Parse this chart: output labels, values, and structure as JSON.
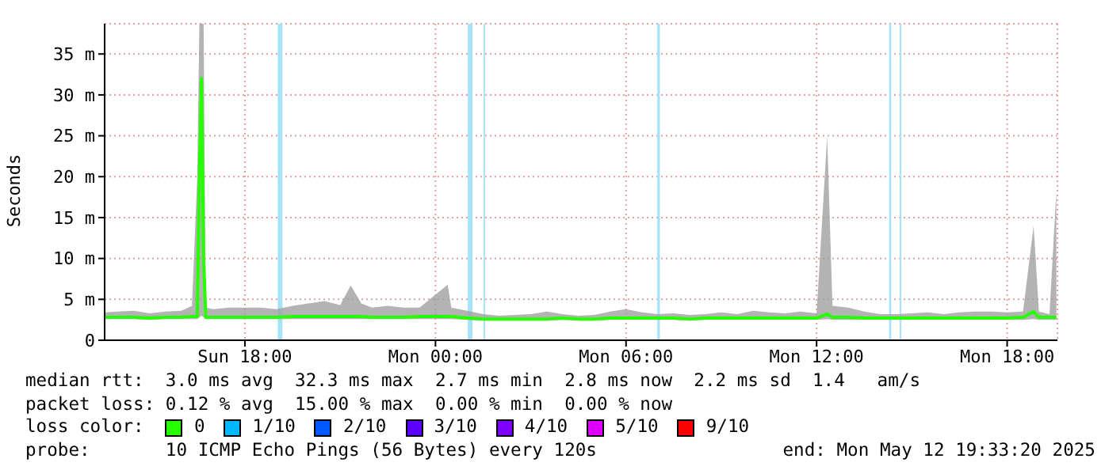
{
  "chart_data": {
    "type": "line",
    "ylabel": "Seconds",
    "legend_title": "loss color:",
    "legend": "bottom",
    "grid": true,
    "xlim": [
      "2025-05-11T13:35",
      "2025-05-12T19:35"
    ],
    "xticks": [
      {
        "value": "2025-05-11T18:00",
        "label": "Sun 18:00"
      },
      {
        "value": "2025-05-12T00:00",
        "label": "Mon 00:00"
      },
      {
        "value": "2025-05-12T06:00",
        "label": "Mon 06:00"
      },
      {
        "value": "2025-05-12T12:00",
        "label": "Mon 12:00"
      },
      {
        "value": "2025-05-12T18:00",
        "label": "Mon 18:00"
      }
    ],
    "ylim": [
      0,
      38.7
    ],
    "yticks": [
      0,
      {
        "value": 5,
        "label": "5 m"
      },
      {
        "value": 10,
        "label": "10 m"
      },
      {
        "value": 15,
        "label": "15 m"
      },
      {
        "value": 20,
        "label": "20 m"
      },
      {
        "value": 25,
        "label": "25 m"
      },
      {
        "value": 30,
        "label": "30 m"
      },
      {
        "value": 35,
        "label": "35 m"
      }
    ],
    "series": [
      {
        "name": "0",
        "color": "#26ff00",
        "x": [
          "2025-05-11T13:36",
          "2025-05-11T14:00",
          "2025-05-11T14:30",
          "2025-05-11T15:00",
          "2025-05-11T15:30",
          "2025-05-11T16:00",
          "2025-05-11T16:20",
          "2025-05-11T16:30",
          "2025-05-11T16:34",
          "2025-05-11T16:38",
          "2025-05-11T16:42",
          "2025-05-11T16:46",
          "2025-05-11T17:00",
          "2025-05-11T17:30",
          "2025-05-11T18:00",
          "2025-05-11T18:30",
          "2025-05-11T19:00",
          "2025-05-11T19:30",
          "2025-05-11T20:00",
          "2025-05-11T20:30",
          "2025-05-11T21:00",
          "2025-05-11T21:20",
          "2025-05-11T21:40",
          "2025-05-11T22:00",
          "2025-05-11T22:30",
          "2025-05-11T23:00",
          "2025-05-11T23:30",
          "2025-05-12T00:23",
          "2025-05-12T00:30",
          "2025-05-12T01:00",
          "2025-05-12T01:30",
          "2025-05-12T02:00",
          "2025-05-12T02:30",
          "2025-05-12T03:00",
          "2025-05-12T03:30",
          "2025-05-12T04:00",
          "2025-05-12T04:30",
          "2025-05-12T05:00",
          "2025-05-12T05:30",
          "2025-05-12T06:00",
          "2025-05-12T06:30",
          "2025-05-12T07:00",
          "2025-05-12T07:30",
          "2025-05-12T08:00",
          "2025-05-12T08:30",
          "2025-05-12T09:00",
          "2025-05-12T09:30",
          "2025-05-12T10:00",
          "2025-05-12T10:30",
          "2025-05-12T11:00",
          "2025-05-12T11:30",
          "2025-05-12T12:00",
          "2025-05-12T12:20",
          "2025-05-12T12:30",
          "2025-05-12T13:00",
          "2025-05-12T13:30",
          "2025-05-12T14:00",
          "2025-05-12T14:30",
          "2025-05-12T15:00",
          "2025-05-12T15:30",
          "2025-05-12T16:00",
          "2025-05-12T16:30",
          "2025-05-12T17:00",
          "2025-05-12T17:30",
          "2025-05-12T18:00",
          "2025-05-12T18:30",
          "2025-05-12T18:50",
          "2025-05-12T19:00",
          "2025-05-12T19:20",
          "2025-05-12T19:33"
        ],
        "values": [
          2.8,
          2.8,
          2.8,
          2.7,
          2.8,
          2.8,
          2.9,
          2.9,
          20,
          32,
          10,
          2.8,
          2.8,
          2.8,
          2.8,
          2.8,
          2.8,
          2.9,
          2.9,
          2.9,
          2.9,
          2.9,
          2.9,
          2.8,
          2.8,
          2.8,
          2.9,
          2.9,
          2.9,
          2.7,
          2.6,
          2.6,
          2.6,
          2.6,
          2.6,
          2.7,
          2.6,
          2.6,
          2.7,
          2.7,
          2.7,
          2.7,
          2.7,
          2.6,
          2.7,
          2.7,
          2.7,
          2.7,
          2.7,
          2.7,
          2.7,
          2.7,
          3.2,
          2.8,
          2.8,
          2.7,
          2.7,
          2.7,
          2.7,
          2.7,
          2.7,
          2.7,
          2.7,
          2.7,
          2.7,
          2.8,
          3.5,
          2.8,
          2.8,
          2.8
        ],
        "lower": [
          2.6,
          2.6,
          2.6,
          2.5,
          2.6,
          2.6,
          2.6,
          2.6,
          2.8,
          3,
          2.8,
          2.6,
          2.6,
          2.6,
          2.6,
          2.6,
          2.6,
          2.6,
          2.6,
          2.6,
          2.6,
          2.6,
          2.6,
          2.6,
          2.6,
          2.6,
          2.6,
          2.6,
          2.6,
          2.5,
          2.4,
          2.4,
          2.4,
          2.4,
          2.4,
          2.5,
          2.4,
          2.4,
          2.5,
          2.5,
          2.5,
          2.5,
          2.5,
          2.4,
          2.5,
          2.5,
          2.5,
          2.5,
          2.5,
          2.5,
          2.5,
          2.5,
          2.6,
          2.5,
          2.5,
          2.5,
          2.5,
          2.5,
          2.5,
          2.5,
          2.5,
          2.5,
          2.5,
          2.5,
          2.5,
          2.5,
          2.6,
          2.5,
          2.5,
          2.5
        ],
        "upper": [
          3.4,
          3.5,
          3.6,
          3.3,
          3.5,
          3.6,
          4.2,
          20,
          38.7,
          38.7,
          38.7,
          4,
          3.8,
          4,
          4,
          4,
          3.8,
          4.2,
          4.5,
          4.8,
          4.3,
          6.7,
          4.5,
          4,
          4.2,
          4,
          4,
          6.8,
          4,
          3.6,
          3.2,
          3,
          3.1,
          3.2,
          3.5,
          3.2,
          3,
          3.1,
          3.5,
          3.8,
          3.4,
          3.2,
          3.3,
          3.1,
          3.2,
          3.4,
          3.2,
          3.6,
          3.4,
          3.3,
          3.5,
          3.3,
          25,
          4.2,
          4,
          3.5,
          3.2,
          3.2,
          3.3,
          3.4,
          3.2,
          3.4,
          3.5,
          3.5,
          3.4,
          3.5,
          14,
          3.5,
          3.2,
          18.3
        ]
      },
      {
        "name": "1/10",
        "color": "#00b8ff"
      },
      {
        "name": "2/10",
        "color": "#0059ff"
      },
      {
        "name": "3/10",
        "color": "#5e00ff"
      },
      {
        "name": "4/10",
        "color": "#7e00ff"
      },
      {
        "name": "5/10",
        "color": "#dd00ff"
      },
      {
        "name": "9/10",
        "color": "#ff0000"
      }
    ],
    "bands": [
      {
        "axis": "x",
        "from": "2025-05-11T19:02",
        "to": "2025-05-11T19:11",
        "color": "#a6e3fa"
      },
      {
        "axis": "x",
        "from": "2025-05-12T01:01",
        "to": "2025-05-12T01:10",
        "color": "#a6e3fa"
      },
      {
        "axis": "x",
        "from": "2025-05-12T01:31",
        "to": "2025-05-12T01:34",
        "color": "#a6e3fa"
      },
      {
        "axis": "x",
        "from": "2025-05-12T06:59",
        "to": "2025-05-12T07:04",
        "color": "#a6e3fa"
      },
      {
        "axis": "x",
        "from": "2025-05-12T14:17",
        "to": "2025-05-12T14:21",
        "color": "#a6e3fa"
      },
      {
        "axis": "x",
        "from": "2025-05-12T14:37",
        "to": "2025-05-12T14:40",
        "color": "#a6e3fa"
      }
    ],
    "annotations": [
      "median rtt:  3.0 ms avg  32.3 ms max  2.7 ms min  2.8 ms now  2.2 ms sd  1.4   am/s",
      "packet loss: 0.12 % avg  15.00 % max  0.00 % min  0.00 % now",
      "probe:       10 ICMP Echo Pings (56 Bytes) every 120s",
      "end: Mon May 12 19:33:20 2025"
    ]
  }
}
